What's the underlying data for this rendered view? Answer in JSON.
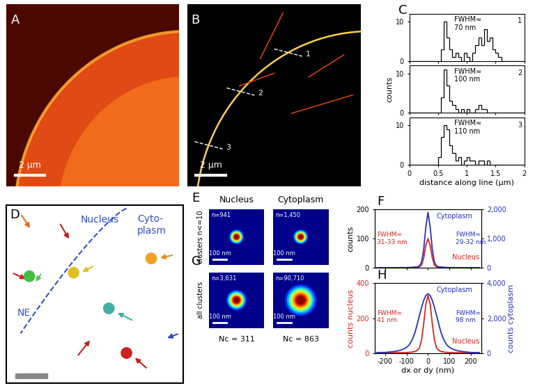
{
  "chart_data": [
    {
      "panel": "A",
      "type": "image",
      "scale_bar": "2 µm"
    },
    {
      "panel": "B",
      "type": "image",
      "scale_bar": "2 µm",
      "line_labels": [
        "1",
        "2",
        "3"
      ]
    },
    {
      "panel": "C",
      "type": "histogram",
      "xlabel": "distance along line (µm)",
      "ylabel": "counts",
      "xlim": [
        0,
        2
      ],
      "xticks": [
        0,
        0.5,
        1,
        1.5,
        2
      ],
      "ylim": [
        0,
        12
      ],
      "yticks": [
        0,
        10
      ],
      "bins": [
        0,
        0.05,
        0.1,
        0.15,
        0.2,
        0.25,
        0.3,
        0.35,
        0.4,
        0.45,
        0.5,
        0.55,
        0.6,
        0.65,
        0.7,
        0.75,
        0.8,
        0.85,
        0.9,
        0.95,
        1,
        1.05,
        1.1,
        1.15,
        1.2,
        1.25,
        1.3,
        1.35,
        1.4,
        1.45,
        1.5,
        1.55,
        1.6,
        1.65,
        1.7,
        1.75,
        1.8,
        1.85,
        1.9,
        1.95,
        2
      ],
      "color": "#000000",
      "series": [
        {
          "name": "1",
          "annotation": "FWHM≈\n70 nm",
          "values": [
            0,
            0,
            0,
            0,
            0,
            0,
            0,
            0,
            0,
            0,
            0,
            3,
            10,
            6,
            3,
            1,
            2,
            1,
            0,
            2,
            1,
            0,
            2,
            4,
            6,
            4,
            8,
            5,
            6,
            3,
            2,
            1,
            0,
            0,
            0,
            0,
            0,
            0,
            0,
            0
          ]
        },
        {
          "name": "2",
          "annotation": "FWHM≈\n100 nm",
          "values": [
            0,
            0,
            0,
            0,
            0,
            0,
            0,
            0,
            0,
            0,
            0,
            4,
            11,
            7,
            3,
            2,
            1,
            0,
            1,
            0,
            1,
            0,
            0,
            1,
            2,
            1,
            1,
            0,
            0,
            0,
            0,
            0,
            0,
            0,
            0,
            0,
            0,
            0,
            0,
            0
          ]
        },
        {
          "name": "3",
          "annotation": "FWHM≈\n110 nm",
          "values": [
            0,
            0,
            0,
            0,
            0,
            0,
            0,
            0,
            0,
            0,
            2,
            7,
            10,
            9,
            5,
            3,
            1,
            2,
            0,
            1,
            2,
            1,
            1,
            0,
            1,
            1,
            0,
            1,
            0,
            0,
            0,
            0,
            0,
            0,
            0,
            0,
            0,
            0,
            0,
            0
          ]
        }
      ]
    },
    {
      "panel": "D",
      "type": "image",
      "labels": [
        "Nucleus",
        "Cyto-\nplasm",
        "NE"
      ]
    },
    {
      "type": "image_grid",
      "columns": [
        "Nucleus",
        "Cytoplasm"
      ],
      "scale_bar": "100 nm",
      "rows": [
        {
          "panel": "E",
          "label": "clusters n<=10",
          "counts": [
            "n=941",
            "n=1,450"
          ]
        },
        {
          "panel": "G",
          "label": "all clusters",
          "counts": [
            "n=3,631",
            "n=90,710"
          ]
        }
      ],
      "footers": [
        "Nc = 311",
        "Nc = 863"
      ]
    },
    {
      "panel": "F",
      "type": "line",
      "ylabel": "counts",
      "tick_labels": "y",
      "x": [
        -240,
        -230,
        -220,
        -210,
        -200,
        -190,
        -180,
        -170,
        -160,
        -150,
        -140,
        -130,
        -120,
        -110,
        -100,
        -90,
        -80,
        -70,
        -60,
        -50,
        -40,
        -30,
        -20,
        -10,
        0,
        10,
        20,
        30,
        40,
        50,
        60,
        70,
        80,
        90,
        100,
        110,
        120,
        130,
        140,
        150,
        160,
        170,
        180,
        190,
        200,
        210,
        220,
        230,
        240
      ],
      "xlim": [
        -250,
        250
      ],
      "xticks": [
        -200,
        -100,
        0,
        100,
        200
      ],
      "ylim": [
        0,
        200
      ],
      "yticks": [
        0,
        100,
        200
      ],
      "y2lim": [
        0,
        2000
      ],
      "y2ticks": [
        0,
        {
          "value": 1000,
          "label": "1,000"
        },
        {
          "value": 2000,
          "label": "2,000"
        }
      ],
      "series": [
        {
          "name": "Nucleus",
          "color": "#e0241b",
          "annotation": "FWHM≈\n31-33 nm",
          "values": [
            0,
            0,
            0,
            0,
            0,
            0,
            0,
            0,
            0,
            0,
            0,
            0,
            0,
            0,
            0,
            0,
            1,
            1,
            1,
            2,
            3,
            9,
            34,
            77,
            100,
            77,
            34,
            9,
            3,
            2,
            1,
            1,
            1,
            0,
            0,
            0,
            0,
            0,
            0,
            0,
            0,
            0,
            0,
            0,
            0,
            0,
            0,
            0,
            0
          ]
        },
        {
          "name": "Cytoplasm",
          "color": "#2530c8",
          "axis": "y2",
          "annotation": "FWHM≈\n29-32 nm",
          "values": [
            2,
            2,
            2,
            2,
            2,
            2,
            3,
            3,
            3,
            4,
            4,
            5,
            5,
            6,
            7,
            8,
            10,
            15,
            20,
            30,
            60,
            190,
            640,
            1400,
            1900,
            1400,
            640,
            190,
            60,
            30,
            20,
            15,
            10,
            8,
            7,
            6,
            5,
            5,
            4,
            4,
            3,
            3,
            3,
            2,
            2,
            2,
            2,
            2,
            2
          ]
        }
      ]
    },
    {
      "panel": "H",
      "type": "line",
      "xlabel": "dx or dy (nm)",
      "ylabel": "counts nucleus",
      "y2label": "counts cytoplasm",
      "x": [
        -240,
        -230,
        -220,
        -210,
        -200,
        -190,
        -180,
        -170,
        -160,
        -150,
        -140,
        -130,
        -120,
        -110,
        -100,
        -90,
        -80,
        -70,
        -60,
        -50,
        -40,
        -30,
        -20,
        -10,
        0,
        10,
        20,
        30,
        40,
        50,
        60,
        70,
        80,
        90,
        100,
        110,
        120,
        130,
        140,
        150,
        160,
        170,
        180,
        190,
        200,
        210,
        220,
        230,
        240
      ],
      "xlim": [
        -250,
        250
      ],
      "xticks": [
        -200,
        -100,
        0,
        100,
        200
      ],
      "ylim": [
        0,
        400
      ],
      "yticks": [
        0,
        200,
        400
      ],
      "y2lim": [
        0,
        4000
      ],
      "y2ticks": [
        0,
        {
          "value": 2000,
          "label": "2,000"
        },
        {
          "value": 4000,
          "label": "4,000"
        }
      ],
      "series": [
        {
          "name": "Nucleus",
          "color": "#e0241b",
          "annotation": "FWHM=\n41 nm",
          "values": [
            1,
            1,
            1,
            1,
            1,
            1,
            1,
            2,
            2,
            2,
            2,
            2,
            2,
            3,
            3,
            4,
            5,
            7,
            10,
            15,
            30,
            75,
            170,
            280,
            330,
            280,
            170,
            75,
            30,
            15,
            10,
            7,
            5,
            4,
            3,
            3,
            2,
            2,
            2,
            2,
            2,
            2,
            1,
            1,
            1,
            1,
            1,
            1,
            1
          ]
        },
        {
          "name": "Cytoplasm",
          "color": "#2530c8",
          "axis": "y2",
          "annotation": "FWHM=\n98 nm",
          "values": [
            25,
            27,
            30,
            35,
            40,
            50,
            60,
            75,
            90,
            110,
            130,
            160,
            200,
            260,
            330,
            440,
            620,
            870,
            1210,
            1680,
            2150,
            2620,
            3020,
            3300,
            3400,
            3300,
            3020,
            2620,
            2150,
            1680,
            1210,
            870,
            620,
            440,
            330,
            260,
            200,
            160,
            130,
            110,
            90,
            75,
            60,
            50,
            40,
            35,
            30,
            27,
            25
          ]
        }
      ]
    }
  ]
}
